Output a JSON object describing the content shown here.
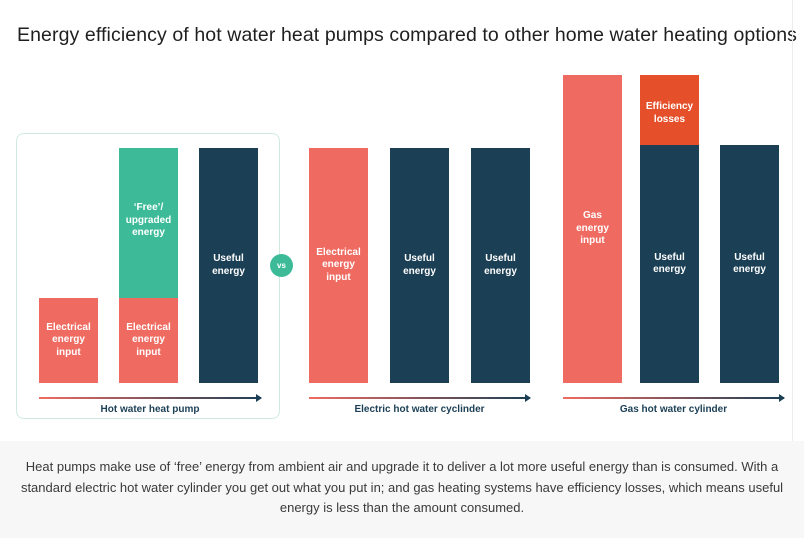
{
  "title": "Energy efficiency of hot water heat pumps compared to other home water heating options",
  "colors": {
    "electrical": "#ef6b61",
    "free": "#3dbb99",
    "useful": "#1b3f55",
    "losses": "#e5502a",
    "gas": "#ef6b61"
  },
  "vs_label": "vs",
  "groups": [
    {
      "label": "Hot water heat pump",
      "bars": [
        [
          {
            "label": "Electrical\nenergy\ninput",
            "value": 1.0,
            "type": "electrical"
          }
        ],
        [
          {
            "label": "Electrical\nenergy\ninput",
            "value": 1.0,
            "type": "electrical"
          },
          {
            "label": "‘Free’/\nupgraded\nenergy",
            "value": 1.76,
            "type": "free"
          }
        ],
        [
          {
            "label": "Useful\nenergy",
            "value": 2.76,
            "type": "useful"
          }
        ]
      ]
    },
    {
      "label": "Electric hot water cyclinder",
      "bars": [
        [
          {
            "label": "Electrical\nenergy\ninput",
            "value": 2.76,
            "type": "electrical"
          }
        ],
        [
          {
            "label": "Useful\nenergy",
            "value": 2.76,
            "type": "useful"
          }
        ],
        [
          {
            "label": "Useful\nenergy",
            "value": 2.76,
            "type": "useful"
          }
        ]
      ]
    },
    {
      "label": "Gas hot water cylinder",
      "bars": [
        [
          {
            "label": "Gas\nenergy\ninput",
            "value": 3.62,
            "type": "gas"
          }
        ],
        [
          {
            "label": "Useful\nenergy",
            "value": 2.8,
            "type": "useful"
          },
          {
            "label": "Efficiency\nlosses",
            "value": 0.82,
            "type": "losses"
          }
        ],
        [
          {
            "label": "Useful\nenergy",
            "value": 2.8,
            "type": "useful"
          }
        ]
      ]
    }
  ],
  "caption": "Heat pumps make use of ‘free’ energy from ambient air and upgrade it to deliver a lot more useful energy than is consumed. With a standard electric hot water cylinder you get out what you put in; and gas heating systems have efficiency losses, which means useful energy is less than the amount consumed."
}
